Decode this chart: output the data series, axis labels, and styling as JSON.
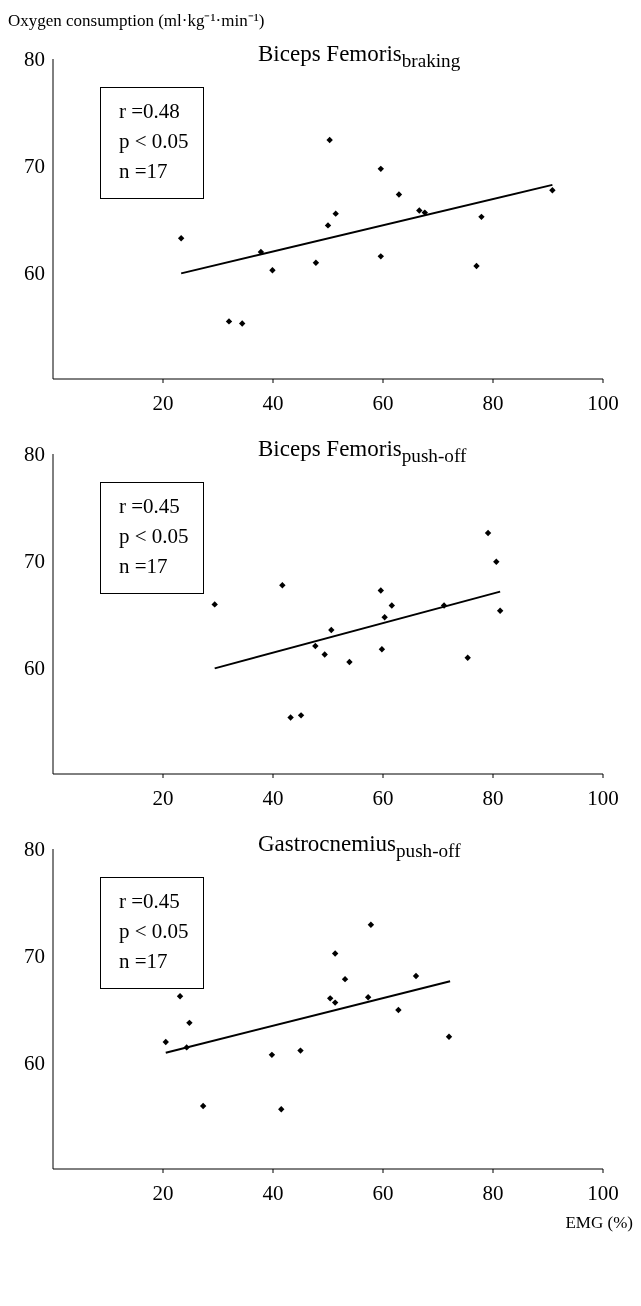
{
  "chart_data": [
    {
      "type": "scatter",
      "title": "Biceps Femoris$_{braking}$",
      "ylabel": "Oxygen consumption (ml·kg⁻¹·min⁻¹)",
      "annotations": [
        "r =0.48",
        "p < 0.05",
        "n =17"
      ],
      "xlim": [
        0,
        100
      ],
      "xticks": [
        20,
        40,
        60,
        80,
        100
      ],
      "ylim": [
        50,
        80
      ],
      "yticks": [
        60,
        70,
        80
      ],
      "series": [
        {
          "marker": "diamond",
          "color": "#000000",
          "x": [
            23.3,
            32.0,
            34.4,
            37.8,
            39.9,
            47.8,
            50.0,
            50.3,
            51.4,
            59.6,
            59.6,
            62.9,
            66.6,
            67.6,
            77.0,
            77.9,
            90.8
          ],
          "values": [
            63.2,
            55.4,
            55.2,
            61.9,
            60.2,
            60.9,
            64.4,
            72.4,
            65.5,
            69.7,
            61.5,
            67.3,
            65.8,
            65.6,
            60.6,
            65.2,
            67.7
          ]
        },
        {
          "type": "line",
          "marker": "none",
          "line_style": "solid",
          "color": "#000000",
          "x": [
            23.3,
            90.8
          ],
          "values": [
            59.9,
            68.2
          ]
        }
      ]
    },
    {
      "type": "scatter",
      "title": "Biceps Femoris$_{push-off}$",
      "annotations": [
        "r =0.45",
        "p < 0.05",
        "n =17"
      ],
      "xlim": [
        0,
        100
      ],
      "xticks": [
        20,
        40,
        60,
        80,
        100
      ],
      "ylim": [
        50,
        80
      ],
      "yticks": [
        60,
        70,
        80
      ],
      "series": [
        {
          "marker": "diamond",
          "color": "#000000",
          "x": [
            29.4,
            41.7,
            43.2,
            45.1,
            47.7,
            49.4,
            50.6,
            53.9,
            59.6,
            59.8,
            60.3,
            61.6,
            71.1,
            75.4,
            79.1,
            80.6,
            81.3
          ],
          "values": [
            65.9,
            67.7,
            55.3,
            55.5,
            62.0,
            61.2,
            63.5,
            60.5,
            67.2,
            61.7,
            64.7,
            65.8,
            65.8,
            60.9,
            72.6,
            69.9,
            65.3
          ]
        },
        {
          "type": "line",
          "marker": "none",
          "line_style": "solid",
          "color": "#000000",
          "x": [
            29.4,
            81.3
          ],
          "values": [
            59.9,
            67.1
          ]
        }
      ]
    },
    {
      "type": "scatter",
      "title": "Gastrocnemius$_{push-off}$",
      "xlabel": "EMG (%)",
      "annotations": [
        "r =0.45",
        "p < 0.05",
        "n =17"
      ],
      "xlim": [
        0,
        100
      ],
      "xticks": [
        20,
        40,
        60,
        80,
        100
      ],
      "ylim": [
        50,
        80
      ],
      "yticks": [
        60,
        70,
        80
      ],
      "series": [
        {
          "marker": "diamond",
          "color": "#000000",
          "x": [
            20.5,
            23.1,
            24.8,
            24.3,
            27.3,
            39.8,
            41.5,
            45.0,
            50.4,
            51.3,
            51.3,
            53.1,
            57.3,
            57.8,
            62.8,
            66.0,
            72.0
          ],
          "values": [
            61.9,
            66.2,
            63.7,
            61.4,
            55.9,
            60.7,
            55.6,
            61.1,
            66.0,
            65.6,
            70.2,
            67.8,
            66.1,
            72.9,
            64.9,
            68.1,
            62.4
          ]
        },
        {
          "type": "line",
          "marker": "none",
          "line_style": "solid",
          "color": "#000000",
          "x": [
            20.5,
            72.2
          ],
          "values": [
            60.9,
            67.6
          ]
        }
      ]
    }
  ]
}
